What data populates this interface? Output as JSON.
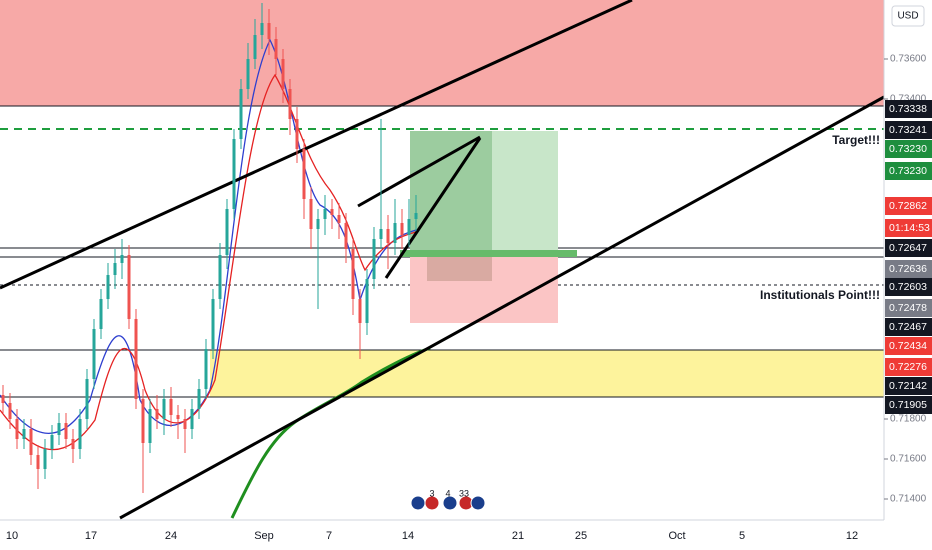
{
  "toolbar": {
    "currency": "USD"
  },
  "chart_data": {
    "type": "candlestick",
    "open": [
      0.7192,
      0.7188,
      0.718,
      0.717,
      0.7175,
      0.7162,
      0.7155,
      0.7165,
      0.7172,
      0.7178,
      0.717,
      0.7165,
      0.718,
      0.72,
      0.7225,
      0.724,
      0.7252,
      0.7258,
      0.7262,
      0.723,
      0.719,
      0.7168,
      0.7185,
      0.718,
      0.719,
      0.7182,
      0.718,
      0.7175,
      0.7185,
      0.7195,
      0.7215,
      0.724,
      0.7262,
      0.7285,
      0.732,
      0.7345,
      0.736,
      0.7372,
      0.7378,
      0.737,
      0.736,
      0.7345,
      0.733,
      0.7315,
      0.729,
      0.7275,
      0.728,
      0.7285,
      0.7282,
      0.7278,
      0.7265,
      0.724,
      0.7228,
      0.725,
      0.727,
      0.7275,
      0.7268,
      0.7278,
      0.7272,
      0.728
    ],
    "high": [
      0.7197,
      0.7193,
      0.7185,
      0.718,
      0.718,
      0.7167,
      0.717,
      0.7177,
      0.7183,
      0.7183,
      0.7175,
      0.7185,
      0.7205,
      0.723,
      0.7245,
      0.7258,
      0.7265,
      0.727,
      0.7267,
      0.7235,
      0.7195,
      0.719,
      0.7192,
      0.7195,
      0.7196,
      0.7187,
      0.7185,
      0.719,
      0.72,
      0.722,
      0.7245,
      0.7268,
      0.729,
      0.7325,
      0.735,
      0.7368,
      0.738,
      0.7388,
      0.7385,
      0.7376,
      0.7365,
      0.735,
      0.7336,
      0.732,
      0.7296,
      0.7285,
      0.7292,
      0.729,
      0.7288,
      0.7283,
      0.727,
      0.7245,
      0.7255,
      0.7276,
      0.733,
      0.7282,
      0.729,
      0.7285,
      0.729,
      0.7292
    ],
    "low": [
      0.7183,
      0.7175,
      0.7165,
      0.7165,
      0.7157,
      0.7145,
      0.715,
      0.716,
      0.7167,
      0.7165,
      0.7158,
      0.716,
      0.7175,
      0.7195,
      0.722,
      0.7235,
      0.7245,
      0.725,
      0.7225,
      0.7185,
      0.7143,
      0.7163,
      0.7175,
      0.7172,
      0.7176,
      0.717,
      0.7163,
      0.717,
      0.718,
      0.719,
      0.721,
      0.7235,
      0.7255,
      0.728,
      0.7315,
      0.734,
      0.7355,
      0.7365,
      0.7362,
      0.7352,
      0.7338,
      0.7322,
      0.7308,
      0.728,
      0.7265,
      0.7235,
      0.7272,
      0.7275,
      0.727,
      0.7258,
      0.7232,
      0.721,
      0.7222,
      0.7245,
      0.7265,
      0.7255,
      0.7262,
      0.7265,
      0.7266,
      0.7274
    ],
    "close": [
      0.7188,
      0.718,
      0.717,
      0.7175,
      0.7162,
      0.7155,
      0.7165,
      0.7172,
      0.7178,
      0.717,
      0.7165,
      0.718,
      0.72,
      0.7225,
      0.724,
      0.7252,
      0.7258,
      0.7262,
      0.723,
      0.719,
      0.7168,
      0.7185,
      0.718,
      0.719,
      0.7182,
      0.718,
      0.7175,
      0.7185,
      0.7195,
      0.7215,
      0.724,
      0.7262,
      0.7285,
      0.732,
      0.7345,
      0.736,
      0.7372,
      0.7378,
      0.737,
      0.736,
      0.7345,
      0.733,
      0.7315,
      0.729,
      0.7275,
      0.728,
      0.7285,
      0.7282,
      0.7278,
      0.7265,
      0.724,
      0.7228,
      0.725,
      0.727,
      0.7275,
      0.7268,
      0.7278,
      0.7272,
      0.728,
      0.7283
    ],
    "up_color": "#26a69a",
    "down_color": "#ef5350",
    "ylim": [
      0.71295,
      0.73895
    ],
    "yticks": [
      {
        "value": 0.736,
        "label": "0.73600"
      },
      {
        "value": 0.734,
        "label": "0.73400"
      },
      {
        "value": 0.718,
        "label": "0.71800"
      },
      {
        "value": 0.716,
        "label": "0.71600"
      },
      {
        "value": 0.714,
        "label": "0.71400"
      }
    ],
    "x_axis_labels": [
      "10",
      "17",
      "24",
      "Sep",
      "7",
      "14",
      "21",
      "25",
      "Oct",
      "5",
      "12"
    ],
    "price_tags": [
      {
        "label": "0.73338",
        "color": "#131722"
      },
      {
        "label": "0.73241",
        "color": "#131722"
      },
      {
        "label": "0.73230",
        "color": "#1e8e3e"
      },
      {
        "label": "0.73230",
        "color": "#1e8e3e"
      },
      {
        "label": "0.72862",
        "color": "#ef3b36"
      },
      {
        "label": "01:14:53",
        "color": "#ef3b36"
      },
      {
        "label": "0.72647",
        "color": "#131722"
      },
      {
        "label": "0.72636",
        "color": "#787b86"
      },
      {
        "label": "0.72603",
        "color": "#131722"
      },
      {
        "label": "0.72478",
        "color": "#787b86"
      },
      {
        "label": "0.72467",
        "color": "#131722"
      },
      {
        "label": "0.72434",
        "color": "#ef3b36"
      },
      {
        "label": "0.72276",
        "color": "#ef3b36"
      },
      {
        "label": "0.72142",
        "color": "#131722"
      },
      {
        "label": "0.71905",
        "color": "#131722"
      }
    ],
    "annotations": [
      "Target!!!",
      "Institutionals Point!!!"
    ],
    "events": [
      "3",
      "4",
      "33"
    ]
  }
}
